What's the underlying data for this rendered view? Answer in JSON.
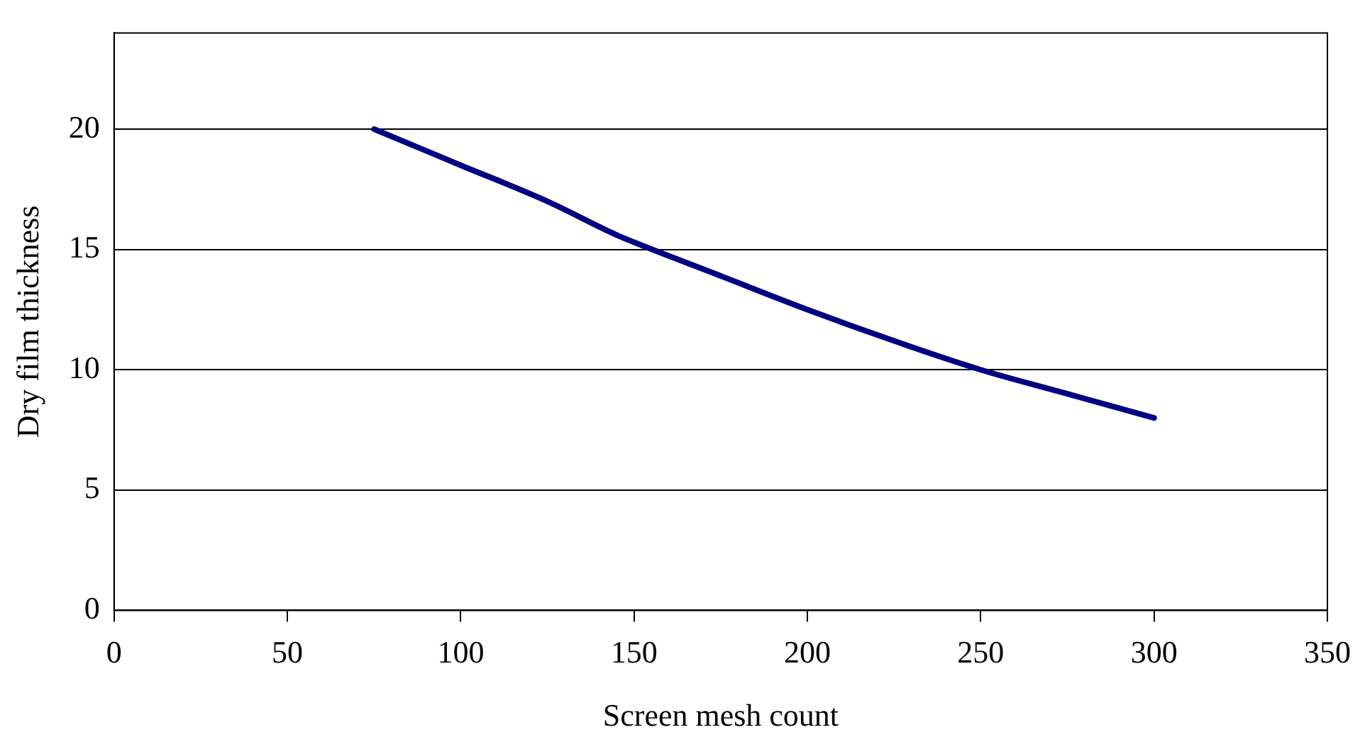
{
  "chart_data": {
    "type": "line",
    "xlabel": "Screen mesh count",
    "ylabel": "Dry film thickness",
    "xlim": [
      0,
      350
    ],
    "xticks": [
      0,
      50,
      100,
      150,
      200,
      250,
      300,
      350
    ],
    "ylim": [
      0,
      24
    ],
    "yticks": [
      0,
      5,
      10,
      15,
      20
    ],
    "grid": "y",
    "legend": false,
    "marker": "none",
    "line_style": "solid",
    "series": [
      {
        "color": "#000080",
        "x": [
          75,
          100,
          125,
          145,
          150,
          175,
          200,
          225,
          250,
          275,
          300
        ],
        "values": [
          20,
          18.5,
          17,
          15.6,
          15.3,
          13.9,
          12.5,
          11.2,
          10,
          9,
          8
        ]
      }
    ]
  }
}
